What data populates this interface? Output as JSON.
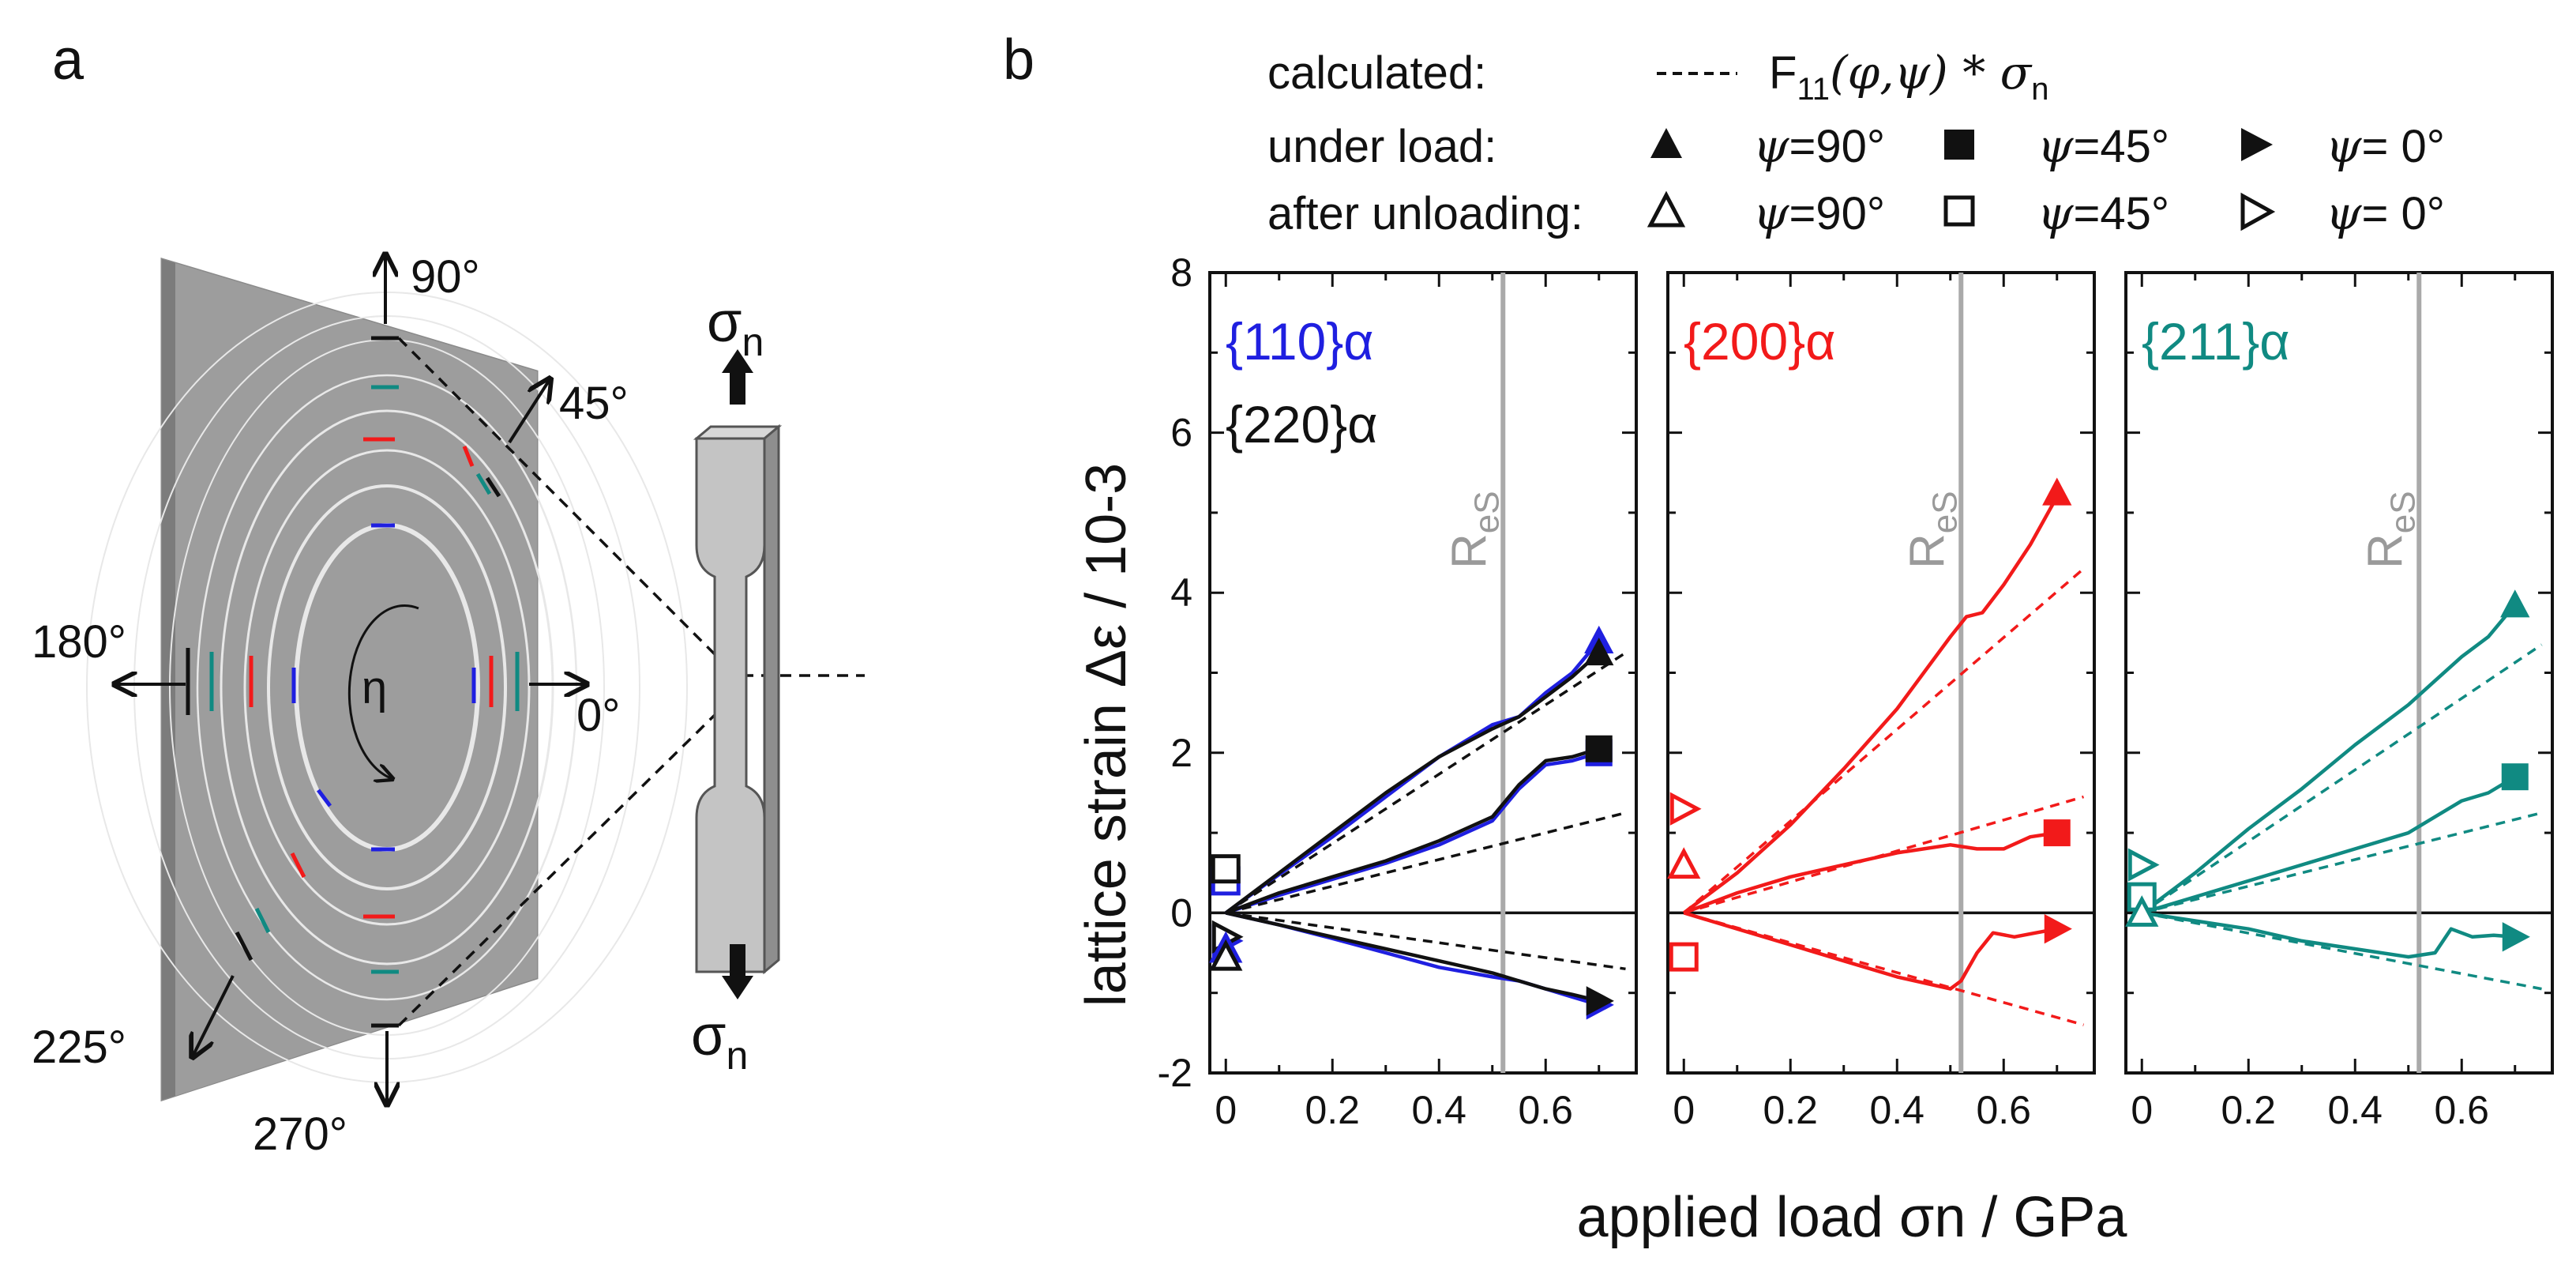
{
  "panel_a": {
    "letter": "a",
    "angles": {
      "a90": "90°",
      "a45": "45°",
      "a180": "180°",
      "a0": "0°",
      "a225": "225°",
      "a270": "270°"
    },
    "eta": "η",
    "sigma_top": "σ",
    "sigma_top_sub": "n",
    "sigma_bottom": "σ",
    "sigma_bottom_sub": "n"
  },
  "legend": {
    "letter": "b",
    "calculated_label": "calculated:",
    "calc_formula_prefix": "F",
    "calc_formula_sub": "11",
    "calc_formula_args": "(φ,ψ) * σ",
    "calc_formula_sub2": "n",
    "under_load_label": "under load:",
    "after_unloading_label": "after unloading:",
    "psi90": "=90°",
    "psi45": "=45°",
    "psi0": "= 0°",
    "psi_symbol": "ψ"
  },
  "colors": {
    "blue": "#1f1fe0",
    "red": "#f21a1a",
    "teal": "#108a82",
    "black": "#111111",
    "res_line": "#aaaaaa"
  },
  "chart_data": [
    {
      "type": "line",
      "title": "{110}α",
      "title2": "{220}α",
      "xlabel": "applied load σn / GPa",
      "ylabel": "lattice strain Δε / 10-3",
      "xlim": [
        -0.03,
        0.77
      ],
      "ylim": [
        -2,
        8
      ],
      "xticks": [
        "0",
        "0.2",
        "0.4",
        "0.6"
      ],
      "yticks": [
        "-2",
        "0",
        "2",
        "4",
        "6",
        "8"
      ],
      "res_label": "R",
      "res_sub": "eS",
      "res_x": 0.52,
      "series": [
        {
          "name": "{110} psi=90 under load",
          "color": "blue",
          "style": "solid",
          "x": [
            0,
            0.1,
            0.2,
            0.3,
            0.4,
            0.5,
            0.55,
            0.6,
            0.65,
            0.7
          ],
          "y": [
            0,
            0.48,
            0.95,
            1.45,
            1.95,
            2.35,
            2.45,
            2.75,
            3.0,
            3.4
          ]
        },
        {
          "name": "{220} psi=90 under load",
          "color": "black",
          "style": "solid",
          "x": [
            0,
            0.1,
            0.2,
            0.3,
            0.4,
            0.5,
            0.55,
            0.6,
            0.65,
            0.7
          ],
          "y": [
            0,
            0.5,
            1.0,
            1.5,
            1.95,
            2.3,
            2.45,
            2.7,
            2.95,
            3.25
          ]
        },
        {
          "name": "{110} psi=45 under load",
          "color": "blue",
          "style": "solid",
          "x": [
            0,
            0.1,
            0.2,
            0.3,
            0.4,
            0.5,
            0.55,
            0.6,
            0.65,
            0.7
          ],
          "y": [
            0,
            0.22,
            0.42,
            0.62,
            0.85,
            1.15,
            1.55,
            1.85,
            1.9,
            2.0
          ]
        },
        {
          "name": "{220} psi=45 under load",
          "color": "black",
          "style": "solid",
          "x": [
            0,
            0.1,
            0.2,
            0.3,
            0.4,
            0.5,
            0.55,
            0.6,
            0.65,
            0.7
          ],
          "y": [
            0,
            0.25,
            0.45,
            0.65,
            0.9,
            1.2,
            1.6,
            1.9,
            1.95,
            2.05
          ]
        },
        {
          "name": "{110} psi=0 under load",
          "color": "blue",
          "style": "solid",
          "x": [
            0,
            0.1,
            0.2,
            0.3,
            0.4,
            0.5,
            0.55,
            0.6,
            0.65,
            0.7
          ],
          "y": [
            0,
            -0.15,
            -0.32,
            -0.5,
            -0.68,
            -0.8,
            -0.85,
            -0.95,
            -1.05,
            -1.15
          ]
        },
        {
          "name": "{220} psi=0 under load",
          "color": "black",
          "style": "solid",
          "x": [
            0,
            0.1,
            0.2,
            0.3,
            0.4,
            0.5,
            0.55,
            0.6,
            0.65,
            0.7
          ],
          "y": [
            0,
            -0.15,
            -0.3,
            -0.45,
            -0.6,
            -0.75,
            -0.85,
            -0.95,
            -1.02,
            -1.1
          ]
        },
        {
          "name": "calculated psi=90",
          "color": "black",
          "style": "dashed",
          "x": [
            0,
            0.75
          ],
          "y": [
            0,
            3.25
          ]
        },
        {
          "name": "calculated psi=45",
          "color": "black",
          "style": "dashed",
          "x": [
            0,
            0.75
          ],
          "y": [
            0,
            1.25
          ]
        },
        {
          "name": "calculated psi=0",
          "color": "black",
          "style": "dashed",
          "x": [
            0,
            0.75
          ],
          "y": [
            0,
            -0.7
          ]
        }
      ],
      "markers": [
        {
          "shape": "tri-up",
          "fill": true,
          "color": "blue",
          "x": 0.7,
          "y": 3.4
        },
        {
          "shape": "tri-up",
          "fill": true,
          "color": "black",
          "x": 0.7,
          "y": 3.25
        },
        {
          "shape": "square",
          "fill": true,
          "color": "blue",
          "x": 0.7,
          "y": 2.0
        },
        {
          "shape": "square",
          "fill": true,
          "color": "black",
          "x": 0.7,
          "y": 2.05
        },
        {
          "shape": "tri-right",
          "fill": true,
          "color": "blue",
          "x": 0.7,
          "y": -1.15
        },
        {
          "shape": "tri-right",
          "fill": true,
          "color": "black",
          "x": 0.7,
          "y": -1.1
        },
        {
          "shape": "square",
          "fill": false,
          "color": "blue",
          "x": 0,
          "y": 0.4
        },
        {
          "shape": "square",
          "fill": false,
          "color": "black",
          "x": 0,
          "y": 0.55
        },
        {
          "shape": "tri-right",
          "fill": false,
          "color": "blue",
          "x": 0,
          "y": -0.35
        },
        {
          "shape": "tri-right",
          "fill": false,
          "color": "black",
          "x": 0,
          "y": -0.3
        },
        {
          "shape": "tri-up",
          "fill": false,
          "color": "blue",
          "x": 0,
          "y": -0.45
        },
        {
          "shape": "tri-up",
          "fill": false,
          "color": "black",
          "x": 0,
          "y": -0.55
        }
      ]
    },
    {
      "type": "line",
      "title": "{200}α",
      "xlim": [
        -0.03,
        0.77
      ],
      "ylim": [
        -2,
        8
      ],
      "xticks": [
        "0",
        "0.2",
        "0.4",
        "0.6"
      ],
      "res_label": "R",
      "res_sub": "eS",
      "res_x": 0.52,
      "series": [
        {
          "name": "{200} psi=90 under load",
          "color": "red",
          "style": "solid",
          "x": [
            0,
            0.1,
            0.2,
            0.3,
            0.4,
            0.5,
            0.53,
            0.56,
            0.6,
            0.65,
            0.7
          ],
          "y": [
            0,
            0.5,
            1.1,
            1.8,
            2.55,
            3.45,
            3.7,
            3.75,
            4.1,
            4.6,
            5.2
          ]
        },
        {
          "name": "{200} psi=45 under load",
          "color": "red",
          "style": "solid",
          "x": [
            0,
            0.1,
            0.2,
            0.3,
            0.4,
            0.5,
            0.55,
            0.6,
            0.65,
            0.7
          ],
          "y": [
            0,
            0.25,
            0.45,
            0.6,
            0.75,
            0.85,
            0.8,
            0.8,
            0.95,
            1.0
          ]
        },
        {
          "name": "{200} psi=0 under load",
          "color": "red",
          "style": "solid",
          "x": [
            0,
            0.1,
            0.2,
            0.3,
            0.4,
            0.5,
            0.52,
            0.55,
            0.58,
            0.62,
            0.66,
            0.7
          ],
          "y": [
            0,
            -0.2,
            -0.4,
            -0.6,
            -0.8,
            -0.95,
            -0.85,
            -0.5,
            -0.25,
            -0.3,
            -0.25,
            -0.2
          ]
        },
        {
          "name": "calculated psi=90",
          "color": "red",
          "style": "dashed",
          "x": [
            0,
            0.75
          ],
          "y": [
            0,
            4.3
          ]
        },
        {
          "name": "calculated psi=45",
          "color": "red",
          "style": "dashed",
          "x": [
            0,
            0.75
          ],
          "y": [
            0,
            1.45
          ]
        },
        {
          "name": "calculated psi=0",
          "color": "red",
          "style": "dashed",
          "x": [
            0,
            0.75
          ],
          "y": [
            0,
            -1.4
          ]
        }
      ],
      "markers": [
        {
          "shape": "tri-up",
          "fill": true,
          "color": "red",
          "x": 0.7,
          "y": 5.25
        },
        {
          "shape": "square",
          "fill": true,
          "color": "red",
          "x": 0.7,
          "y": 1.0
        },
        {
          "shape": "tri-right",
          "fill": true,
          "color": "red",
          "x": 0.7,
          "y": -0.2
        },
        {
          "shape": "tri-right",
          "fill": false,
          "color": "red",
          "x": 0,
          "y": 1.3
        },
        {
          "shape": "tri-up",
          "fill": false,
          "color": "red",
          "x": 0,
          "y": 0.6
        },
        {
          "shape": "square",
          "fill": false,
          "color": "red",
          "x": 0,
          "y": -0.55
        }
      ]
    },
    {
      "type": "line",
      "title": "{211}α",
      "xlim": [
        -0.03,
        0.77
      ],
      "ylim": [
        -2,
        8
      ],
      "xticks": [
        "0",
        "0.2",
        "0.4",
        "0.6"
      ],
      "res_label": "R",
      "res_sub": "eS",
      "res_x": 0.52,
      "series": [
        {
          "name": "{211} psi=90 under load",
          "color": "teal",
          "style": "solid",
          "x": [
            0,
            0.1,
            0.2,
            0.3,
            0.4,
            0.5,
            0.55,
            0.6,
            0.65,
            0.7
          ],
          "y": [
            0,
            0.5,
            1.05,
            1.55,
            2.1,
            2.6,
            2.9,
            3.2,
            3.45,
            3.85
          ]
        },
        {
          "name": "{211} psi=45 under load",
          "color": "teal",
          "style": "solid",
          "x": [
            0,
            0.1,
            0.2,
            0.3,
            0.4,
            0.5,
            0.55,
            0.6,
            0.65,
            0.7
          ],
          "y": [
            0,
            0.2,
            0.4,
            0.6,
            0.8,
            1.0,
            1.2,
            1.4,
            1.5,
            1.7
          ]
        },
        {
          "name": "{211} psi=0 under load",
          "color": "teal",
          "style": "solid",
          "x": [
            0,
            0.1,
            0.2,
            0.3,
            0.4,
            0.5,
            0.55,
            0.58,
            0.62,
            0.66,
            0.7
          ],
          "y": [
            0,
            -0.1,
            -0.2,
            -0.35,
            -0.45,
            -0.55,
            -0.5,
            -0.2,
            -0.3,
            -0.28,
            -0.3
          ]
        },
        {
          "name": "calculated psi=90",
          "color": "teal",
          "style": "dashed",
          "x": [
            0,
            0.75
          ],
          "y": [
            0,
            3.35
          ]
        },
        {
          "name": "calculated psi=45",
          "color": "teal",
          "style": "dashed",
          "x": [
            0,
            0.75
          ],
          "y": [
            0,
            1.25
          ]
        },
        {
          "name": "calculated psi=0",
          "color": "teal",
          "style": "dashed",
          "x": [
            0,
            0.75
          ],
          "y": [
            0,
            -0.95
          ]
        }
      ],
      "markers": [
        {
          "shape": "tri-up",
          "fill": true,
          "color": "teal",
          "x": 0.7,
          "y": 3.85
        },
        {
          "shape": "square",
          "fill": true,
          "color": "teal",
          "x": 0.7,
          "y": 1.7
        },
        {
          "shape": "tri-right",
          "fill": true,
          "color": "teal",
          "x": 0.7,
          "y": -0.3
        },
        {
          "shape": "tri-right",
          "fill": false,
          "color": "teal",
          "x": 0,
          "y": 0.6
        },
        {
          "shape": "square",
          "fill": false,
          "color": "teal",
          "x": 0,
          "y": 0.2
        },
        {
          "shape": "tri-up",
          "fill": false,
          "color": "teal",
          "x": 0,
          "y": 0.0
        }
      ]
    }
  ]
}
